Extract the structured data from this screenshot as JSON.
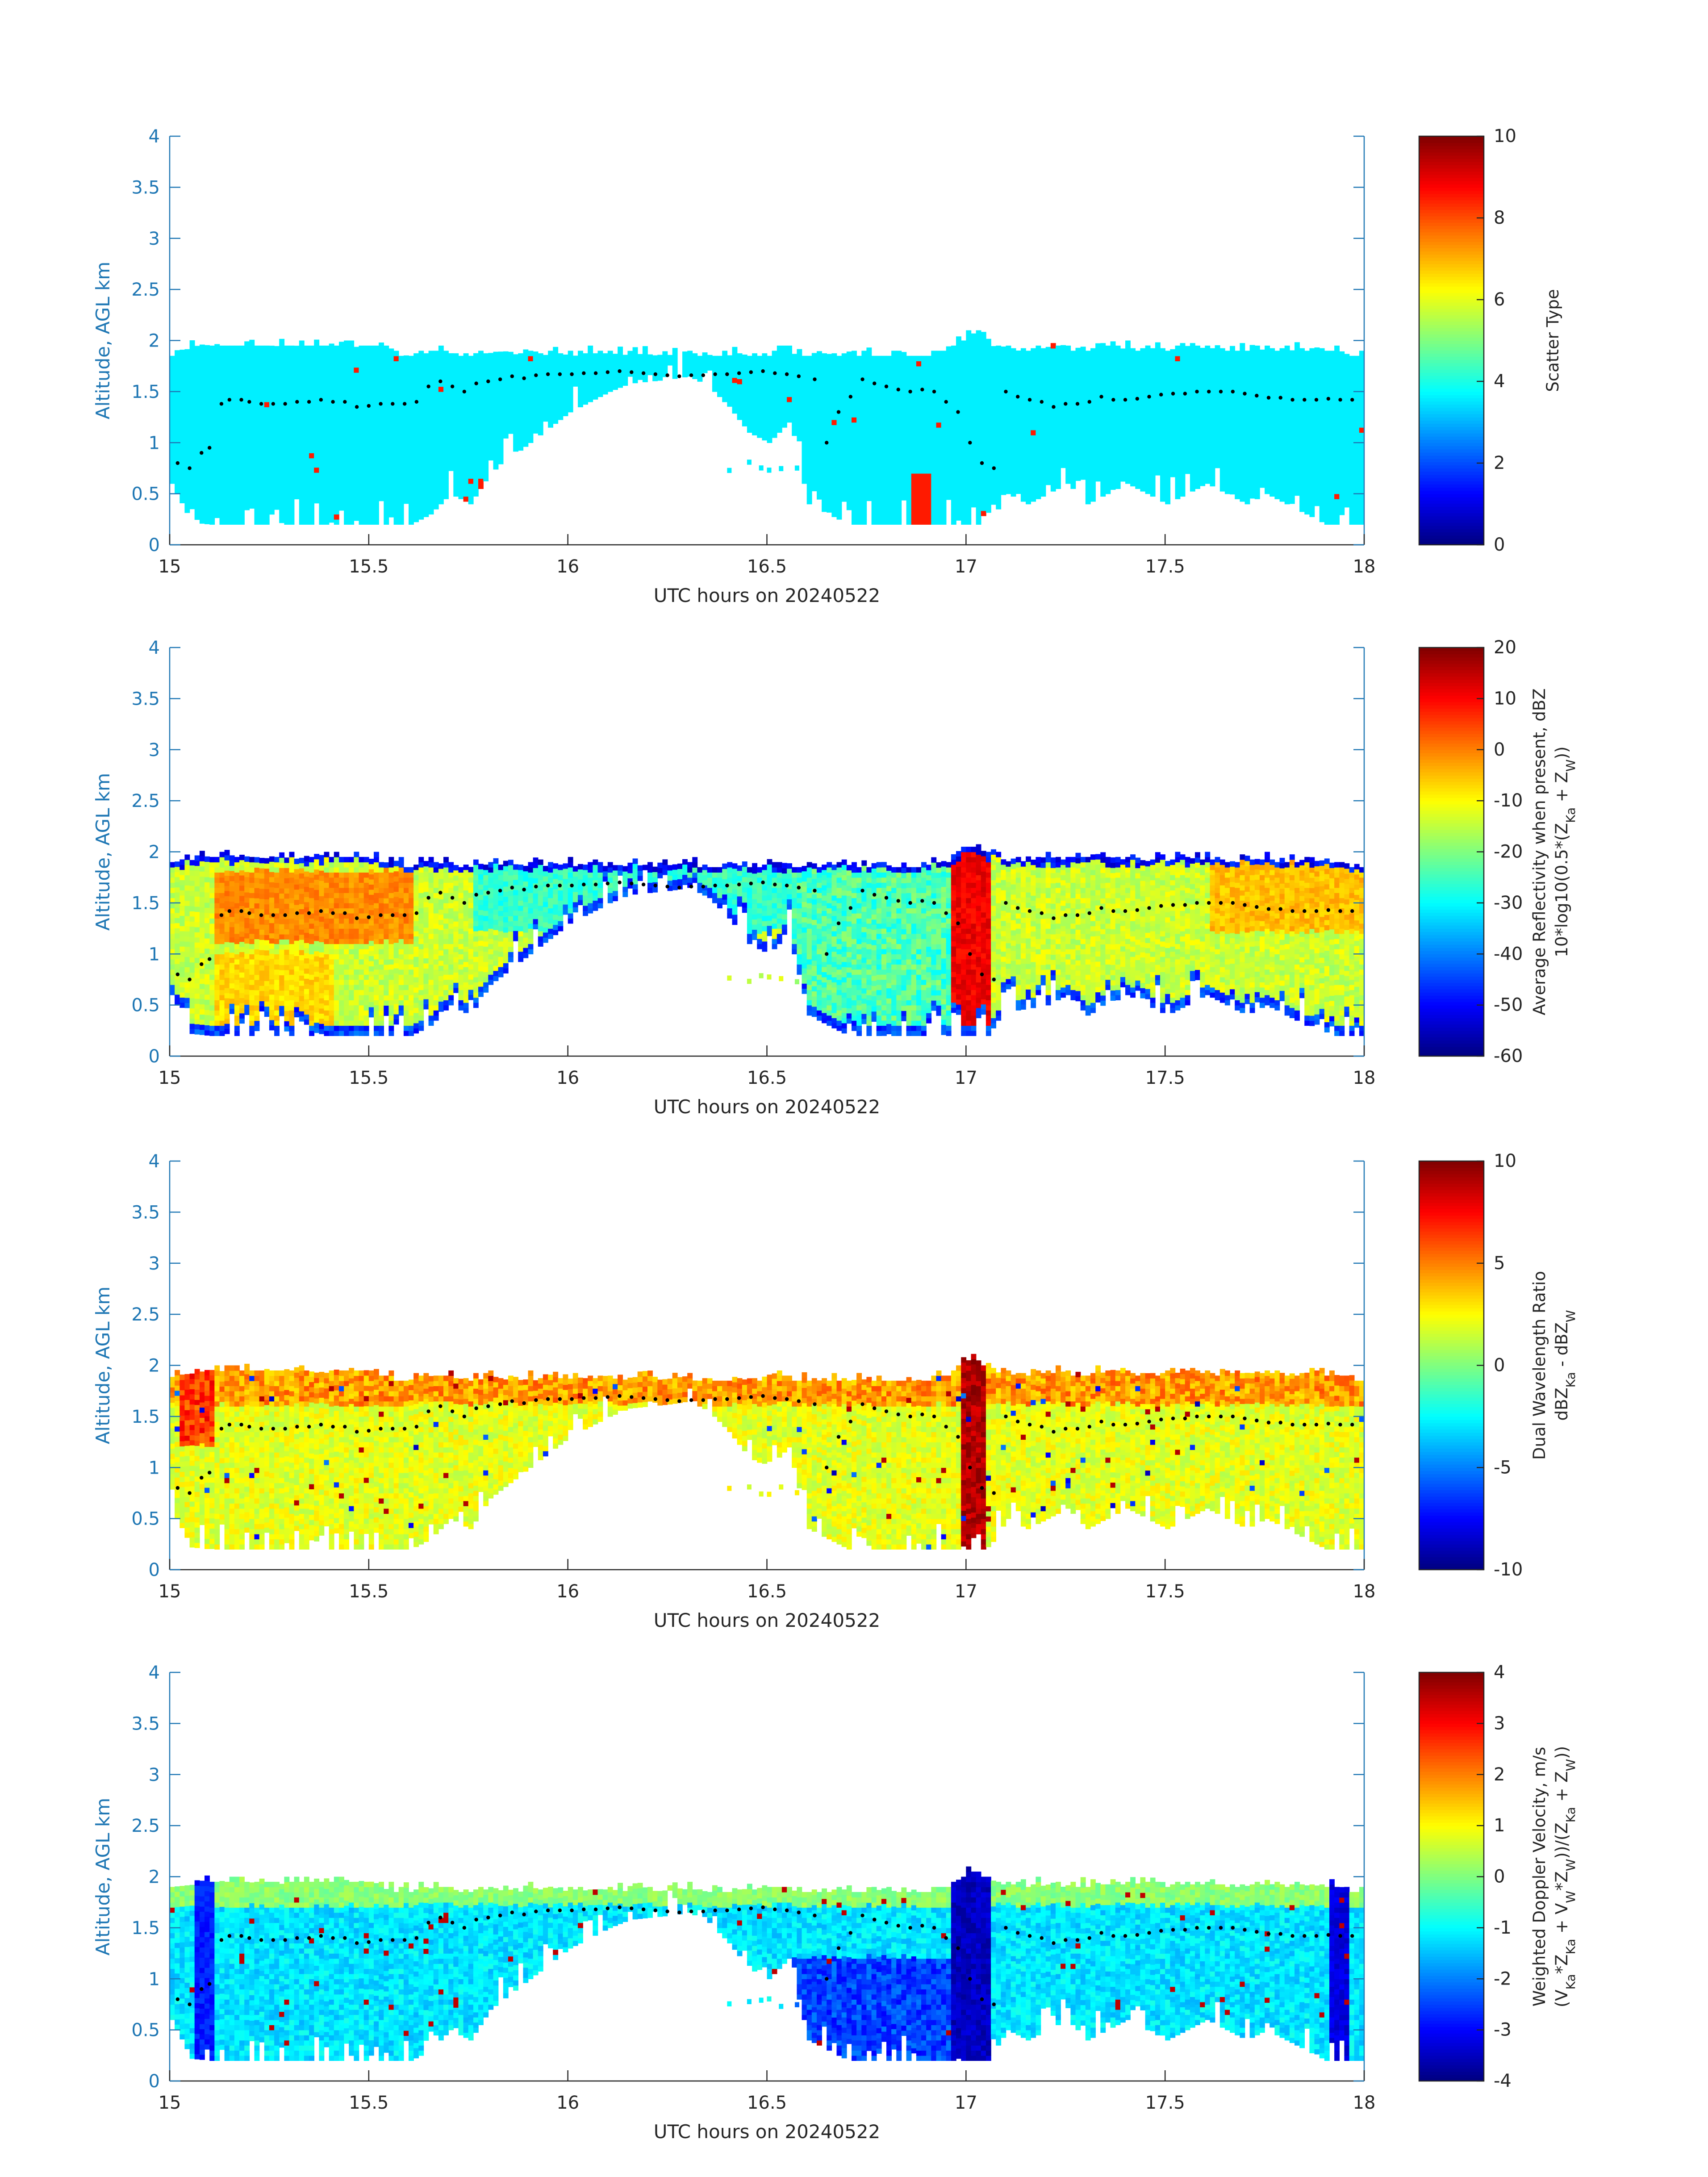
{
  "colors": {
    "axis": "#1f77b4",
    "text": "#262626",
    "cloud_top_dots": "#000000",
    "colormap": "jet"
  },
  "chart_data": [
    {
      "type": "heatmap",
      "id": "scatter-type",
      "xlabel": "UTC hours on 20240522",
      "ylabel": "Altitude, AGL km",
      "xlim": [
        15,
        18
      ],
      "ylim": [
        0,
        4
      ],
      "xticks": [
        "15",
        "15.5",
        "16",
        "16.5",
        "17",
        "17.5",
        "18"
      ],
      "yticks": [
        "0",
        "0.5",
        "1",
        "1.5",
        "2",
        "2.5",
        "3",
        "3.5",
        "4"
      ],
      "colorbar": {
        "label": "Scatter Type",
        "label_sub": "",
        "range": [
          0,
          10
        ],
        "ticks": [
          "0",
          "2",
          "4",
          "6",
          "8",
          "10"
        ]
      },
      "field": "scatter",
      "background_value": 3.6,
      "notes": "cloud layer mostly value ~3.6 (cyan), isolated red pixels ~8.5"
    },
    {
      "type": "heatmap",
      "id": "reflectivity",
      "xlabel": "UTC hours on 20240522",
      "ylabel": "Altitude, AGL km",
      "xlim": [
        15,
        18
      ],
      "ylim": [
        0,
        4
      ],
      "xticks": [
        "15",
        "15.5",
        "16",
        "16.5",
        "17",
        "17.5",
        "18"
      ],
      "yticks": [
        "0",
        "0.5",
        "1",
        "1.5",
        "2",
        "2.5",
        "3",
        "3.5",
        "4"
      ],
      "colorbar": {
        "label": "Average Reflectivity when present, dBZ",
        "label_sub": "10*log10(0.5*(Z_Ka + Z_W))",
        "range": [
          -60,
          20
        ],
        "ticks": [
          "-60",
          "-50",
          "-40",
          "-30",
          "-20",
          "-10",
          "0",
          "10",
          "20"
        ]
      },
      "field": "reflectivity"
    },
    {
      "type": "heatmap",
      "id": "dwr",
      "xlabel": "UTC hours on 20240522",
      "ylabel": "Altitude, AGL km",
      "xlim": [
        15,
        18
      ],
      "ylim": [
        0,
        4
      ],
      "xticks": [
        "15",
        "15.5",
        "16",
        "16.5",
        "17",
        "17.5",
        "18"
      ],
      "yticks": [
        "0",
        "0.5",
        "1",
        "1.5",
        "2",
        "2.5",
        "3",
        "3.5",
        "4"
      ],
      "colorbar": {
        "label": "Dual Wavelength Ratio",
        "label_sub": "dBZ_Ka - dBZ_W",
        "range": [
          -10,
          10
        ],
        "ticks": [
          "-10",
          "-5",
          "0",
          "5",
          "10"
        ]
      },
      "field": "dwr"
    },
    {
      "type": "heatmap",
      "id": "doppler",
      "xlabel": "UTC hours on 20240522",
      "ylabel": "Altitude, AGL km",
      "xlim": [
        15,
        18
      ],
      "ylim": [
        0,
        4
      ],
      "xticks": [
        "15",
        "15.5",
        "16",
        "16.5",
        "17",
        "17.5",
        "18"
      ],
      "yticks": [
        "0",
        "0.5",
        "1",
        "1.5",
        "2",
        "2.5",
        "3",
        "3.5",
        "4"
      ],
      "colorbar": {
        "label": "Weighted Doppler Velocity, m/s",
        "label_sub": "(V_Ka*Z_Ka + V_W*Z_W))/(Z_Ka + Z_W))",
        "range": [
          -4,
          4
        ],
        "ticks": [
          "-4",
          "-3",
          "-2",
          "-1",
          "0",
          "1",
          "2",
          "3",
          "4"
        ]
      },
      "field": "doppler"
    }
  ],
  "cloud_profile": {
    "x_hours": [
      15.0,
      15.05,
      15.1,
      15.15,
      15.2,
      15.25,
      15.3,
      15.35,
      15.4,
      15.45,
      15.5,
      15.55,
      15.6,
      15.65,
      15.7,
      15.75,
      15.8,
      15.85,
      15.9,
      15.95,
      16.0,
      16.05,
      16.1,
      16.15,
      16.2,
      16.25,
      16.3,
      16.35,
      16.4,
      16.45,
      16.5,
      16.55,
      16.6,
      16.65,
      16.7,
      16.75,
      16.8,
      16.85,
      16.9,
      16.95,
      17.0,
      17.02,
      17.05,
      17.1,
      17.15,
      17.2,
      17.25,
      17.3,
      17.35,
      17.4,
      17.45,
      17.5,
      17.55,
      17.6,
      17.65,
      17.7,
      17.75,
      17.8,
      17.85,
      17.9,
      17.95,
      18.0
    ],
    "top_km": [
      1.85,
      1.92,
      1.92,
      1.92,
      1.92,
      1.92,
      1.92,
      1.92,
      1.92,
      1.92,
      1.92,
      1.85,
      1.85,
      1.85,
      1.85,
      1.85,
      1.85,
      1.85,
      1.85,
      1.85,
      1.85,
      1.85,
      1.85,
      1.85,
      1.85,
      1.85,
      1.85,
      1.85,
      1.85,
      1.85,
      1.85,
      1.85,
      1.85,
      1.85,
      1.85,
      1.85,
      1.85,
      1.85,
      1.85,
      1.9,
      2.02,
      2.05,
      1.95,
      1.9,
      1.9,
      1.9,
      1.9,
      1.9,
      1.9,
      1.9,
      1.9,
      1.9,
      1.9,
      1.9,
      1.9,
      1.9,
      1.9,
      1.9,
      1.9,
      1.9,
      1.85,
      1.85
    ],
    "base_km": [
      0.6,
      0.22,
      0.2,
      0.2,
      0.2,
      0.2,
      0.2,
      0.2,
      0.2,
      0.2,
      0.2,
      0.2,
      0.2,
      0.3,
      0.5,
      0.4,
      0.7,
      0.85,
      1.0,
      1.15,
      1.3,
      1.4,
      1.5,
      1.58,
      1.6,
      1.62,
      1.65,
      1.55,
      1.35,
      1.1,
      1.0,
      1.2,
      0.4,
      0.3,
      0.2,
      0.2,
      0.2,
      0.2,
      0.2,
      0.2,
      0.2,
      0.2,
      0.2,
      0.5,
      0.4,
      0.5,
      0.6,
      0.4,
      0.5,
      0.6,
      0.5,
      0.4,
      0.5,
      0.6,
      0.5,
      0.4,
      0.5,
      0.4,
      0.3,
      0.2,
      0.2,
      0.2
    ],
    "dots_x": [
      15.02,
      15.05,
      15.08,
      15.1,
      15.13,
      15.15,
      15.18,
      15.2,
      15.23,
      15.26,
      15.29,
      15.32,
      15.35,
      15.38,
      15.41,
      15.44,
      15.47,
      15.5,
      15.53,
      15.56,
      15.59,
      15.62,
      15.65,
      15.68,
      15.71,
      15.74,
      15.77,
      15.8,
      15.83,
      15.86,
      15.89,
      15.92,
      15.95,
      15.98,
      16.01,
      16.04,
      16.07,
      16.1,
      16.13,
      16.16,
      16.19,
      16.22,
      16.25,
      16.28,
      16.31,
      16.34,
      16.37,
      16.4,
      16.43,
      16.46,
      16.49,
      16.52,
      16.55,
      16.58,
      16.62,
      16.65,
      16.68,
      16.71,
      16.74,
      16.77,
      16.8,
      16.83,
      16.86,
      16.89,
      16.92,
      16.95,
      16.98,
      17.01,
      17.04,
      17.07,
      17.1,
      17.13,
      17.16,
      17.19,
      17.22,
      17.25,
      17.28,
      17.31,
      17.34,
      17.37,
      17.4,
      17.43,
      17.46,
      17.49,
      17.52,
      17.55,
      17.58,
      17.61,
      17.64,
      17.67,
      17.7,
      17.73,
      17.76,
      17.79,
      17.82,
      17.85,
      17.88,
      17.91,
      17.94,
      17.97
    ],
    "dots_km": [
      0.8,
      0.75,
      0.9,
      0.95,
      1.38,
      1.42,
      1.42,
      1.4,
      1.38,
      1.38,
      1.38,
      1.4,
      1.4,
      1.42,
      1.4,
      1.4,
      1.35,
      1.36,
      1.38,
      1.38,
      1.38,
      1.4,
      1.55,
      1.6,
      1.55,
      1.5,
      1.58,
      1.6,
      1.62,
      1.65,
      1.63,
      1.66,
      1.67,
      1.67,
      1.67,
      1.68,
      1.68,
      1.69,
      1.7,
      1.69,
      1.68,
      1.67,
      1.66,
      1.65,
      1.66,
      1.66,
      1.67,
      1.67,
      1.68,
      1.69,
      1.7,
      1.68,
      1.67,
      1.65,
      1.62,
      1.0,
      1.3,
      1.45,
      1.62,
      1.58,
      1.55,
      1.52,
      1.5,
      1.52,
      1.5,
      1.4,
      1.3,
      1.0,
      0.8,
      0.75,
      1.5,
      1.45,
      1.42,
      1.4,
      1.35,
      1.38,
      1.38,
      1.4,
      1.45,
      1.42,
      1.42,
      1.43,
      1.45,
      1.47,
      1.48,
      1.48,
      1.5,
      1.5,
      1.5,
      1.5,
      1.48,
      1.46,
      1.44,
      1.44,
      1.42,
      1.42,
      1.42,
      1.43,
      1.42,
      1.42
    ]
  }
}
